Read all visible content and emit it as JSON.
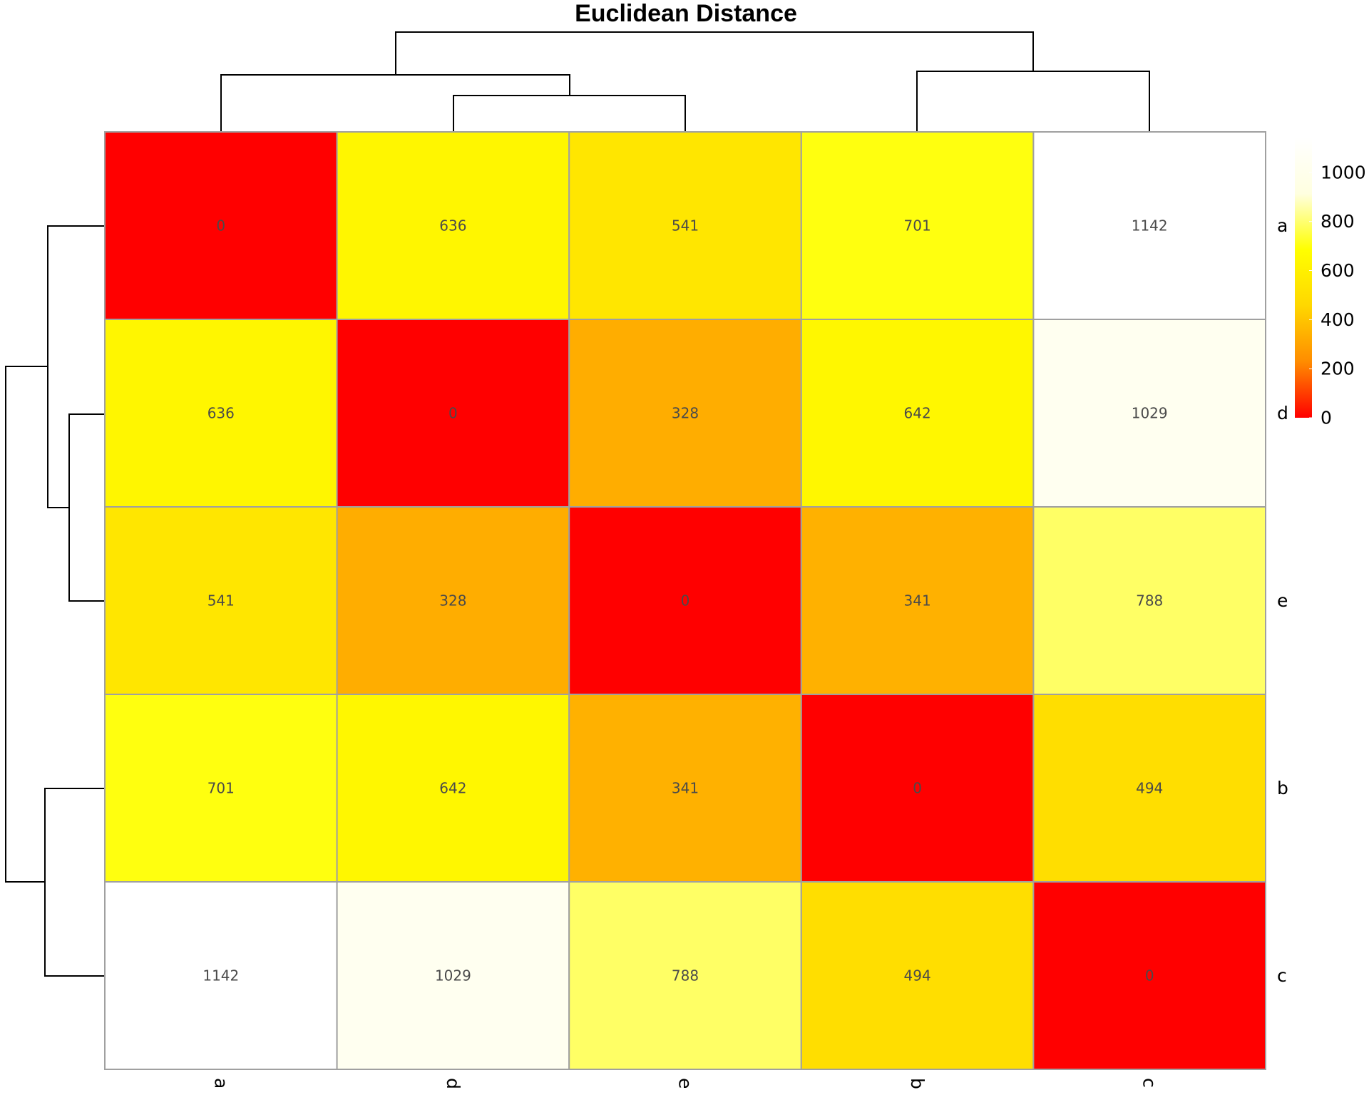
{
  "chart_data": {
    "type": "heatmap",
    "title": "Euclidean Distance",
    "rows": [
      "a",
      "d",
      "e",
      "b",
      "c"
    ],
    "cols": [
      "a",
      "d",
      "e",
      "b",
      "c"
    ],
    "values": [
      [
        0,
        636,
        541,
        701,
        1142
      ],
      [
        636,
        0,
        328,
        642,
        1029
      ],
      [
        541,
        328,
        0,
        341,
        788
      ],
      [
        701,
        642,
        341,
        0,
        494
      ],
      [
        1142,
        1029,
        788,
        494,
        0
      ]
    ],
    "colorscale": [
      "#ff0000",
      "#ff8c00",
      "#ffd700",
      "#ffff00",
      "#ffffe0",
      "#ffffff"
    ],
    "legend": {
      "min": 0,
      "max": 1142,
      "ticks": [
        0,
        200,
        400,
        600,
        800,
        1000
      ],
      "placement": "top-right"
    },
    "dendrogram": {
      "shown": true,
      "placement": [
        "top",
        "left"
      ]
    }
  }
}
